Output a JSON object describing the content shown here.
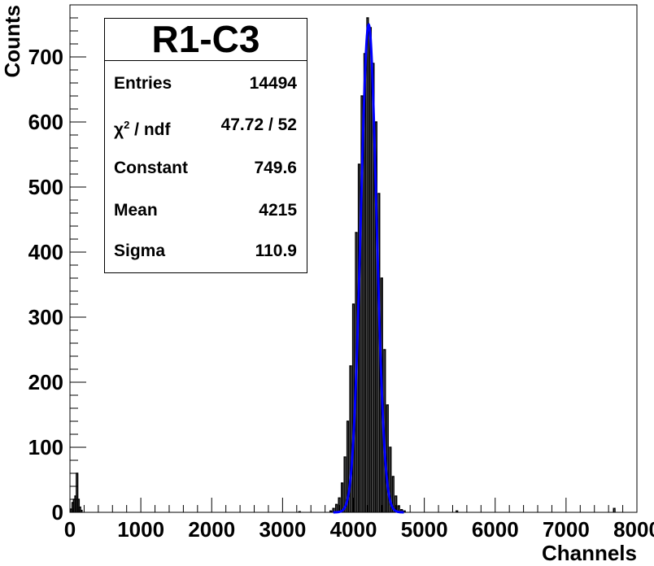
{
  "chart_data": {
    "type": "histogram",
    "title": "R1-C3",
    "xlabel": "Channels",
    "ylabel": "Counts",
    "xlim": [
      0,
      8000
    ],
    "ylim": [
      0,
      780
    ],
    "x_ticks": [
      "0",
      "1000",
      "2000",
      "3000",
      "4000",
      "5000",
      "6000",
      "7000",
      "8000"
    ],
    "y_ticks": [
      "0",
      "100",
      "200",
      "300",
      "400",
      "500",
      "600",
      "700"
    ],
    "grid": false,
    "stats": [
      {
        "label": "Entries",
        "value": "14494"
      },
      {
        "label": "χ / ndf",
        "sup": "2",
        "value": "47.72 / 52"
      },
      {
        "label": "Constant",
        "value": "749.6"
      },
      {
        "label": "Mean",
        "value": "4215"
      },
      {
        "label": "Sigma",
        "value": "110.9"
      }
    ],
    "fit": {
      "function": "gaus",
      "constant": 749.6,
      "mean": 4215,
      "sigma": 110.9,
      "color": "#0000ff"
    },
    "histogram_color": "#000000",
    "bin_width": 20,
    "bins": [
      {
        "x": 20,
        "y": 5
      },
      {
        "x": 40,
        "y": 15
      },
      {
        "x": 60,
        "y": 20
      },
      {
        "x": 80,
        "y": 25
      },
      {
        "x": 100,
        "y": 60
      },
      {
        "x": 120,
        "y": 20
      },
      {
        "x": 140,
        "y": 8
      },
      {
        "x": 160,
        "y": 3
      },
      {
        "x": 3240,
        "y": 1
      },
      {
        "x": 3680,
        "y": 2
      },
      {
        "x": 3720,
        "y": 6
      },
      {
        "x": 3760,
        "y": 12
      },
      {
        "x": 3800,
        "y": 22
      },
      {
        "x": 3840,
        "y": 45
      },
      {
        "x": 3880,
        "y": 85
      },
      {
        "x": 3920,
        "y": 140
      },
      {
        "x": 3960,
        "y": 225
      },
      {
        "x": 4000,
        "y": 320
      },
      {
        "x": 4040,
        "y": 430
      },
      {
        "x": 4080,
        "y": 535
      },
      {
        "x": 4120,
        "y": 640
      },
      {
        "x": 4160,
        "y": 705
      },
      {
        "x": 4200,
        "y": 760
      },
      {
        "x": 4240,
        "y": 745
      },
      {
        "x": 4280,
        "y": 690
      },
      {
        "x": 4320,
        "y": 600
      },
      {
        "x": 4360,
        "y": 490
      },
      {
        "x": 4400,
        "y": 360
      },
      {
        "x": 4440,
        "y": 250
      },
      {
        "x": 4480,
        "y": 165
      },
      {
        "x": 4520,
        "y": 100
      },
      {
        "x": 4560,
        "y": 55
      },
      {
        "x": 4600,
        "y": 25
      },
      {
        "x": 4640,
        "y": 10
      },
      {
        "x": 4680,
        "y": 4
      },
      {
        "x": 4720,
        "y": 2
      },
      {
        "x": 5460,
        "y": 2
      },
      {
        "x": 7680,
        "y": 6
      }
    ]
  }
}
